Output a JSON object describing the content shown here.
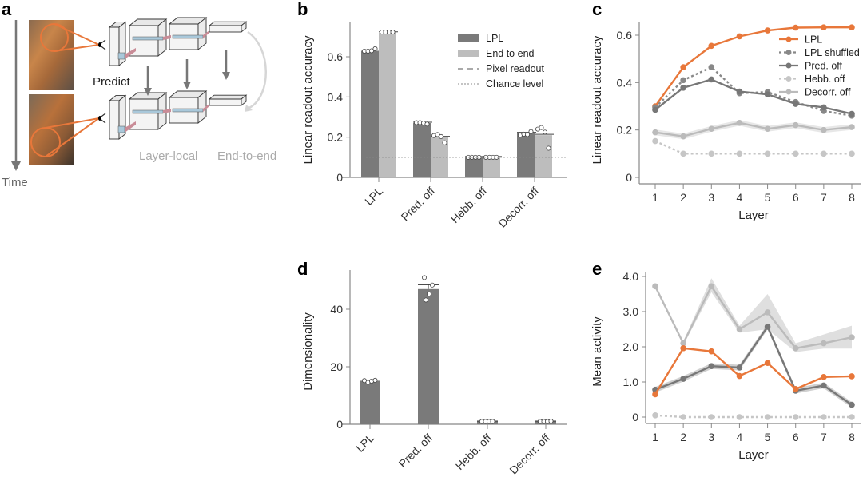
{
  "figure": {
    "panel_labels": [
      "a",
      "b",
      "c",
      "d",
      "e"
    ]
  },
  "diagram_a": {
    "time_label": "Time",
    "predict_label": "Predict",
    "layer_local_label": "Layer-local",
    "end_to_end_label": "End-to-end",
    "colors": {
      "highlight": "#e8773a",
      "arrow": "#777777",
      "light_arrow": "#cccccc"
    }
  },
  "chart_data": [
    {
      "id": "b",
      "type": "bar",
      "title": "",
      "xlabel": "",
      "ylabel": "Linear readout accuracy",
      "ylim": [
        0,
        0.72
      ],
      "yticks": [
        0,
        0.2,
        0.4,
        0.6
      ],
      "ytick_labels": [
        "0",
        "0.2",
        "0.4",
        "0.6"
      ],
      "categories": [
        "LPL",
        "Pred. off",
        "Hebb. off",
        "Decorr. off"
      ],
      "series": [
        {
          "name": "LPL",
          "color": "#7a7a7a",
          "values": [
            0.63,
            0.27,
            0.1,
            0.22
          ],
          "points": [
            [
              0.628,
              0.628,
              0.63,
              0.64
            ],
            [
              0.272,
              0.272,
              0.27,
              0.265
            ],
            [
              0.1,
              0.1,
              0.1,
              0.1
            ],
            [
              0.21,
              0.215,
              0.213,
              0.228
            ]
          ]
        },
        {
          "name": "End to end",
          "color": "#bdbdbd",
          "values": [
            0.72,
            0.2,
            0.1,
            0.21
          ],
          "points": [
            [
              0.723,
              0.723,
              0.723,
              0.723
            ],
            [
              0.208,
              0.213,
              0.203,
              0.172
            ],
            [
              0.1,
              0.1,
              0.1,
              0.1
            ],
            [
              0.24,
              0.248,
              0.225,
              0.145
            ]
          ]
        }
      ],
      "reference_lines": [
        {
          "name": "Pixel readout",
          "value": 0.32,
          "style": "dashed"
        },
        {
          "name": "Chance level",
          "value": 0.1,
          "style": "dotted"
        }
      ],
      "legend": [
        "LPL",
        "End to end",
        "Pixel readout",
        "Chance level"
      ],
      "legend_position": "top-right",
      "grid": false
    },
    {
      "id": "c",
      "type": "line",
      "xlabel": "Layer",
      "ylabel": "Linear readout accuracy",
      "x": [
        1,
        2,
        3,
        4,
        5,
        6,
        7,
        8
      ],
      "ylim": [
        0,
        0.65
      ],
      "yticks": [
        0,
        0.2,
        0.4,
        0.6
      ],
      "ytick_labels": [
        "0",
        "0.2",
        "0.4",
        "0.6"
      ],
      "series": [
        {
          "name": "LPL",
          "color": "#e8773a",
          "style": "solid",
          "values": [
            0.3,
            0.465,
            0.555,
            0.595,
            0.62,
            0.632,
            0.633,
            0.633
          ]
        },
        {
          "name": "LPL shuffled",
          "color": "#888888",
          "style": "dotted",
          "values": [
            0.295,
            0.41,
            0.465,
            0.355,
            0.36,
            0.318,
            0.28,
            0.26
          ]
        },
        {
          "name": "Pred. off",
          "color": "#777777",
          "style": "solid",
          "values": [
            0.285,
            0.378,
            0.413,
            0.362,
            0.35,
            0.31,
            0.295,
            0.268
          ]
        },
        {
          "name": "Hebb. off",
          "color": "#c6c6c6",
          "style": "dotted",
          "values": [
            0.153,
            0.1,
            0.1,
            0.1,
            0.1,
            0.1,
            0.1,
            0.1
          ]
        },
        {
          "name": "Decorr. off",
          "color": "#bbbbbb",
          "style": "solid",
          "band": 0.012,
          "values": [
            0.19,
            0.173,
            0.205,
            0.23,
            0.205,
            0.22,
            0.2,
            0.212
          ]
        }
      ],
      "legend_position": "top-right",
      "grid": false
    },
    {
      "id": "d",
      "type": "bar",
      "xlabel": "",
      "ylabel": "Dimensionality",
      "ylim": [
        0,
        50
      ],
      "yticks": [
        0,
        20,
        40
      ],
      "ytick_labels": [
        "0",
        "20",
        "40"
      ],
      "categories": [
        "LPL",
        "Pred. off",
        "Hebb. off",
        "Decorr. off"
      ],
      "series": [
        {
          "name": "LPL",
          "color": "#7a7a7a",
          "values": [
            15,
            47,
            1,
            1
          ],
          "errors": [
            0.3,
            1.5,
            0.1,
            0.1
          ],
          "points": [
            [
              15.2,
              14.6,
              15.0,
              15.3
            ],
            [
              51.0,
              48.4,
              45.3,
              43.2
            ],
            [
              1,
              1,
              1,
              1
            ],
            [
              1,
              1,
              1,
              1.1
            ]
          ]
        }
      ],
      "grid": false
    },
    {
      "id": "e",
      "type": "line",
      "xlabel": "Layer",
      "ylabel": "Mean activity",
      "x": [
        1,
        2,
        3,
        4,
        5,
        6,
        7,
        8
      ],
      "ylim": [
        0,
        4.2
      ],
      "yticks": [
        0,
        1.0,
        2.0,
        3.0,
        4.0
      ],
      "ytick_labels": [
        "0",
        "1.0",
        "2.0",
        "3.0",
        "4.0"
      ],
      "series": [
        {
          "name": "Decorr. off",
          "color": "#bbbbbb",
          "style": "solid",
          "band_lo": [
            3.72,
            2.05,
            3.55,
            2.4,
            2.5,
            1.85,
            1.95,
            1.95
          ],
          "band_hi": [
            3.72,
            2.15,
            3.95,
            2.6,
            3.5,
            2.1,
            2.35,
            2.6
          ],
          "values": [
            3.72,
            2.1,
            3.72,
            2.5,
            2.98,
            1.96,
            2.1,
            2.27
          ]
        },
        {
          "name": "Pred. off",
          "color": "#777777",
          "style": "solid",
          "band": 0.08,
          "values": [
            0.78,
            1.09,
            1.45,
            1.41,
            2.57,
            0.75,
            0.9,
            0.35
          ]
        },
        {
          "name": "LPL",
          "color": "#e8773a",
          "style": "solid",
          "values": [
            0.65,
            1.96,
            1.87,
            1.17,
            1.54,
            0.8,
            1.14,
            1.16
          ]
        },
        {
          "name": "Hebb. off",
          "color": "#c6c6c6",
          "style": "dotted",
          "values": [
            0.05,
            0.0,
            0.0,
            0.0,
            0.0,
            0.0,
            0.0,
            0.0
          ]
        }
      ],
      "grid": false
    }
  ]
}
